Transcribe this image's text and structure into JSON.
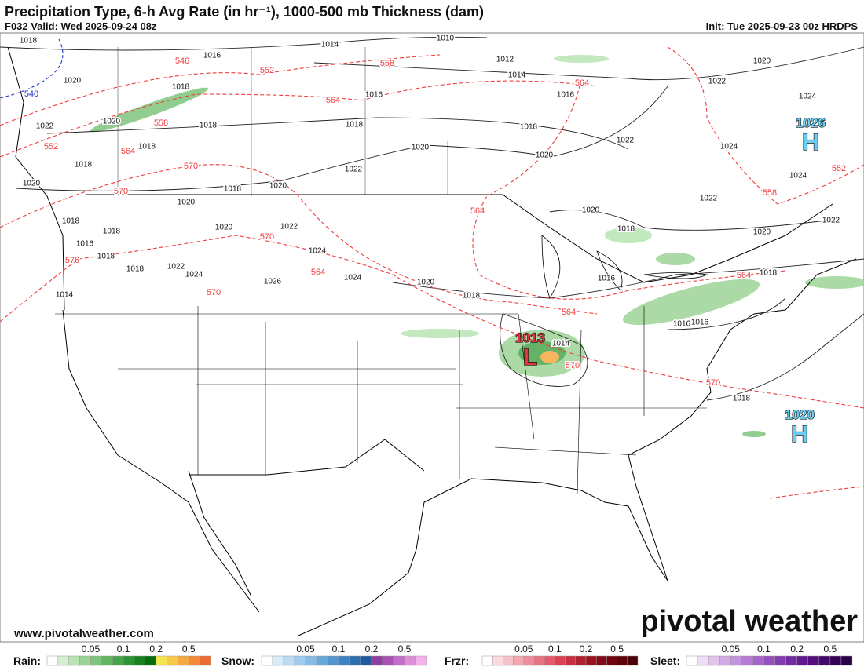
{
  "header": {
    "title": "Precipitation Type, 6-h Avg Rate (in hr⁻¹), 1000-500 mb Thickness (dam)",
    "valid": "F032 Valid: Wed 2025-09-24 08z",
    "init": "Init: Tue 2025-09-23 00z HRDPS"
  },
  "map": {
    "isobar_labels": [
      "1018",
      "1016",
      "1014",
      "1010",
      "1012",
      "1014",
      "1020",
      "1020",
      "1018",
      "1016",
      "1016",
      "1022",
      "1024",
      "1022",
      "1020",
      "1018",
      "1018",
      "1018",
      "1022",
      "1020",
      "1018",
      "1020",
      "1024",
      "1018",
      "1022",
      "1024",
      "1020",
      "1018",
      "1020",
      "1022",
      "1020",
      "1020",
      "1018",
      "1022",
      "1018",
      "1020",
      "1022",
      "1018",
      "1020",
      "1016",
      "1024",
      "1018",
      "1022",
      "1024",
      "1018",
      "1026",
      "1024",
      "1020",
      "1016",
      "1018",
      "1018",
      "1014",
      "1016",
      "1016",
      "1014",
      "1018"
    ],
    "thickness_labels": [
      "546",
      "552",
      "558",
      "564",
      "564",
      "558",
      "552",
      "564",
      "570",
      "570",
      "564",
      "558",
      "552",
      "570",
      "576",
      "564",
      "570",
      "564",
      "564",
      "570",
      "570"
    ],
    "thickness_labels_cold": [
      "540"
    ],
    "centers": [
      {
        "pressure": "1013",
        "symbol": "L"
      },
      {
        "pressure": "1026",
        "symbol": "H"
      },
      {
        "pressure": "1020",
        "symbol": "H"
      }
    ]
  },
  "footer": {
    "website": "www.pivotalweather.com",
    "watermark": "pivotal weather"
  },
  "legend": [
    {
      "label": "Rain:",
      "ticks": [
        0.05,
        0.1,
        0.2,
        0.5
      ],
      "colors": [
        "#ffffff",
        "#d4f0d0",
        "#b8e4b2",
        "#9cd496",
        "#7fc47c",
        "#63b463",
        "#48a44b",
        "#2d9434",
        "#17811f",
        "#056e0c",
        "#f4e652",
        "#f7c94a",
        "#f5a941",
        "#f28a3a",
        "#ee6a33"
      ]
    },
    {
      "label": "Snow:",
      "ticks": [
        0.05,
        0.1,
        0.2,
        0.5
      ],
      "colors": [
        "#ffffff",
        "#d8ecf8",
        "#bcdcf3",
        "#a0ccee",
        "#84bce6",
        "#68a9dc",
        "#5196cf",
        "#3c82c0",
        "#2c6eae",
        "#1e5a9b",
        "#8e3e9e",
        "#a954b3",
        "#c36ec8",
        "#dd8fd9",
        "#f3b3ea"
      ]
    },
    {
      "label": "Frzr:",
      "ticks": [
        0.05,
        0.1,
        0.2,
        0.5
      ],
      "colors": [
        "#ffffff",
        "#fbd9dd",
        "#f7c1c8",
        "#f3a7b2",
        "#ee8d9b",
        "#e97383",
        "#e45a6c",
        "#d94255",
        "#c72f40",
        "#b0202f",
        "#9a1322",
        "#850a18",
        "#710511",
        "#5e020b",
        "#4c0007"
      ]
    },
    {
      "label": "Sleet:",
      "ticks": [
        0.05,
        0.1,
        0.2,
        0.5
      ],
      "colors": [
        "#ffffff",
        "#efdcf5",
        "#e1c4ee",
        "#d2ace6",
        "#c494de",
        "#b57cd5",
        "#a665cb",
        "#964fbf",
        "#853bb1",
        "#7329a1",
        "#62198f",
        "#520e7c",
        "#440669",
        "#370157",
        "#2b0046"
      ]
    }
  ]
}
